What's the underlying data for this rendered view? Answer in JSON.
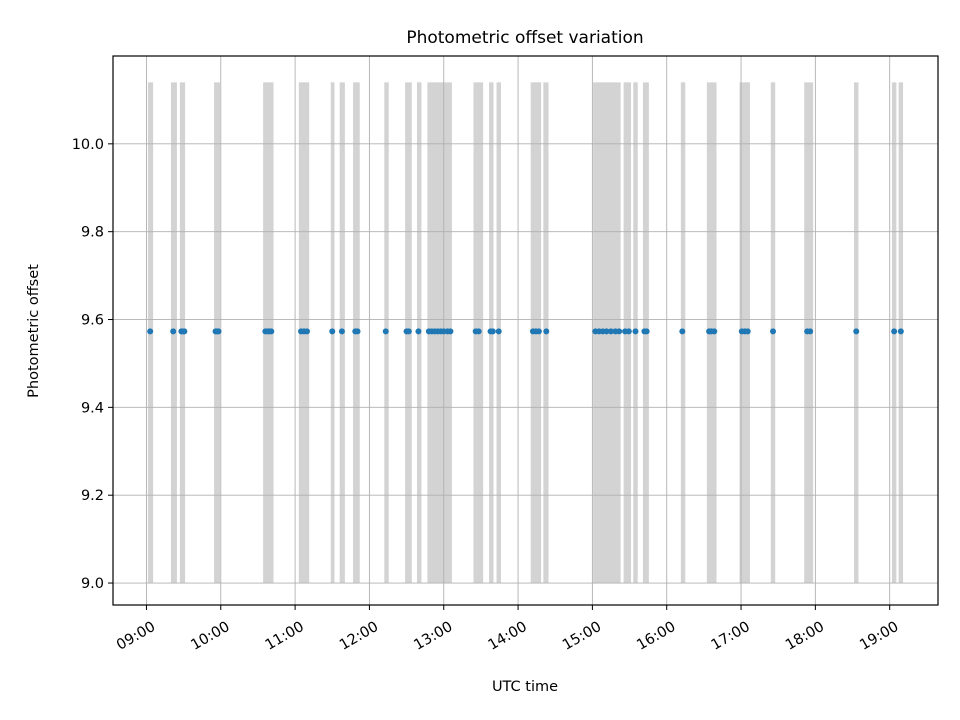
{
  "chart_data": {
    "type": "scatter",
    "title": "Photometric offset variation",
    "xlabel": "UTC time",
    "ylabel": "Photometric offset",
    "x_range_hours": [
      8.55,
      19.65
    ],
    "ylim": [
      8.95,
      10.2
    ],
    "grid": true,
    "x_ticks": [
      {
        "hour": 9,
        "label": "09:00"
      },
      {
        "hour": 10,
        "label": "10:00"
      },
      {
        "hour": 11,
        "label": "11:00"
      },
      {
        "hour": 12,
        "label": "12:00"
      },
      {
        "hour": 13,
        "label": "13:00"
      },
      {
        "hour": 14,
        "label": "14:00"
      },
      {
        "hour": 15,
        "label": "15:00"
      },
      {
        "hour": 16,
        "label": "16:00"
      },
      {
        "hour": 17,
        "label": "17:00"
      },
      {
        "hour": 18,
        "label": "18:00"
      },
      {
        "hour": 19,
        "label": "19:00"
      }
    ],
    "y_ticks": [
      {
        "value": 9.0,
        "label": "9.0"
      },
      {
        "value": 9.2,
        "label": "9.2"
      },
      {
        "value": 9.4,
        "label": "9.4"
      },
      {
        "value": 9.6,
        "label": "9.6"
      },
      {
        "value": 9.8,
        "label": "9.8"
      },
      {
        "value": 10.0,
        "label": "10.0"
      }
    ],
    "point_color": "#1f77b4",
    "band_color": "#d3d3d3",
    "band_range": [
      9.0,
      10.14
    ],
    "bands": [
      [
        9.02,
        9.09
      ],
      [
        9.33,
        9.41
      ],
      [
        9.45,
        9.52
      ],
      [
        9.91,
        9.99
      ],
      [
        10.57,
        10.71
      ],
      [
        11.05,
        11.19
      ],
      [
        11.48,
        11.53
      ],
      [
        11.6,
        11.67
      ],
      [
        11.78,
        11.87
      ],
      [
        12.2,
        12.26
      ],
      [
        12.48,
        12.57
      ],
      [
        12.64,
        12.7
      ],
      [
        12.78,
        13.11
      ],
      [
        13.4,
        13.53
      ],
      [
        13.61,
        13.67
      ],
      [
        13.71,
        13.77
      ],
      [
        14.17,
        14.31
      ],
      [
        14.34,
        14.41
      ],
      [
        15.01,
        15.38
      ],
      [
        15.42,
        15.52
      ],
      [
        15.55,
        15.61
      ],
      [
        15.68,
        15.76
      ],
      [
        16.19,
        16.25
      ],
      [
        16.54,
        16.67
      ],
      [
        16.98,
        17.12
      ],
      [
        17.4,
        17.46
      ],
      [
        17.85,
        17.97
      ],
      [
        18.52,
        18.58
      ],
      [
        19.03,
        19.09
      ],
      [
        19.12,
        19.18
      ]
    ],
    "points": [
      {
        "x": 9.05,
        "y": 9.573
      },
      {
        "x": 9.36,
        "y": 9.573
      },
      {
        "x": 9.47,
        "y": 9.573
      },
      {
        "x": 9.49,
        "y": 9.573
      },
      {
        "x": 9.51,
        "y": 9.573
      },
      {
        "x": 9.93,
        "y": 9.573
      },
      {
        "x": 9.95,
        "y": 9.573
      },
      {
        "x": 9.97,
        "y": 9.573
      },
      {
        "x": 10.6,
        "y": 9.573
      },
      {
        "x": 10.63,
        "y": 9.573
      },
      {
        "x": 10.65,
        "y": 9.573
      },
      {
        "x": 10.68,
        "y": 9.573
      },
      {
        "x": 11.08,
        "y": 9.573
      },
      {
        "x": 11.12,
        "y": 9.573
      },
      {
        "x": 11.16,
        "y": 9.573
      },
      {
        "x": 11.5,
        "y": 9.573
      },
      {
        "x": 11.63,
        "y": 9.573
      },
      {
        "x": 11.81,
        "y": 9.573
      },
      {
        "x": 11.84,
        "y": 9.573
      },
      {
        "x": 12.22,
        "y": 9.573
      },
      {
        "x": 12.5,
        "y": 9.573
      },
      {
        "x": 12.53,
        "y": 9.573
      },
      {
        "x": 12.66,
        "y": 9.573
      },
      {
        "x": 12.8,
        "y": 9.573
      },
      {
        "x": 12.84,
        "y": 9.573
      },
      {
        "x": 12.88,
        "y": 9.573
      },
      {
        "x": 12.92,
        "y": 9.573
      },
      {
        "x": 12.96,
        "y": 9.573
      },
      {
        "x": 13.0,
        "y": 9.573
      },
      {
        "x": 13.05,
        "y": 9.573
      },
      {
        "x": 13.09,
        "y": 9.573
      },
      {
        "x": 13.43,
        "y": 9.573
      },
      {
        "x": 13.47,
        "y": 9.573
      },
      {
        "x": 13.63,
        "y": 9.573
      },
      {
        "x": 13.66,
        "y": 9.573
      },
      {
        "x": 13.74,
        "y": 9.573
      },
      {
        "x": 14.2,
        "y": 9.573
      },
      {
        "x": 14.24,
        "y": 9.573
      },
      {
        "x": 14.28,
        "y": 9.573
      },
      {
        "x": 14.38,
        "y": 9.573
      },
      {
        "x": 15.04,
        "y": 9.573
      },
      {
        "x": 15.09,
        "y": 9.573
      },
      {
        "x": 15.14,
        "y": 9.573
      },
      {
        "x": 15.19,
        "y": 9.573
      },
      {
        "x": 15.25,
        "y": 9.573
      },
      {
        "x": 15.31,
        "y": 9.573
      },
      {
        "x": 15.36,
        "y": 9.573
      },
      {
        "x": 15.44,
        "y": 9.573
      },
      {
        "x": 15.49,
        "y": 9.573
      },
      {
        "x": 15.58,
        "y": 9.573
      },
      {
        "x": 15.7,
        "y": 9.573
      },
      {
        "x": 15.73,
        "y": 9.573
      },
      {
        "x": 16.21,
        "y": 9.573
      },
      {
        "x": 16.57,
        "y": 9.573
      },
      {
        "x": 16.6,
        "y": 9.573
      },
      {
        "x": 16.64,
        "y": 9.573
      },
      {
        "x": 17.01,
        "y": 9.573
      },
      {
        "x": 17.05,
        "y": 9.573
      },
      {
        "x": 17.09,
        "y": 9.573
      },
      {
        "x": 17.43,
        "y": 9.573
      },
      {
        "x": 17.89,
        "y": 9.573
      },
      {
        "x": 17.93,
        "y": 9.573
      },
      {
        "x": 18.55,
        "y": 9.573
      },
      {
        "x": 19.06,
        "y": 9.573
      },
      {
        "x": 19.15,
        "y": 9.573
      }
    ]
  }
}
